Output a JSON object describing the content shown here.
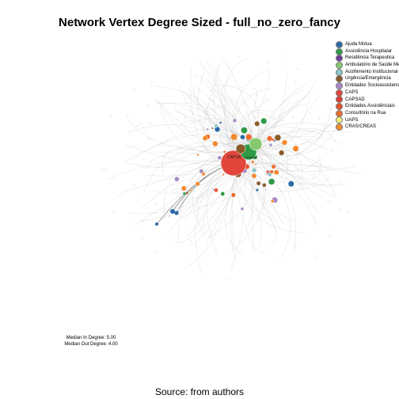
{
  "title": "Network Vertex Degree Sized - full_no_zero_fancy",
  "legend": [
    {
      "label": "Ajuda Mútua",
      "color": "#2b6aa8"
    },
    {
      "label": "Assistência Hospitalar",
      "color": "#2f9a48"
    },
    {
      "label": "Residência Terapeutica",
      "color": "#6d3f98"
    },
    {
      "label": "Ambulatório de Saúde Mental",
      "color": "#86c96e"
    },
    {
      "label": "Acolhimento Institucional",
      "color": "#8fc7c9"
    },
    {
      "label": "Urgência/Emergência",
      "color": "#8b5a2b"
    },
    {
      "label": "Entidades Socioassistenciais",
      "color": "#a888c8"
    },
    {
      "label": "CAPS",
      "color": "#e2453c"
    },
    {
      "label": "CAPSAD",
      "color": "#e03a2f"
    },
    {
      "label": "Entidades Assistênciais",
      "color": "#e8502e"
    },
    {
      "label": "Consultório na Rua",
      "color": "#ef6c2f"
    },
    {
      "label": "UAPS",
      "color": "#f0f07a"
    },
    {
      "label": "CRAS/CREAS",
      "color": "#f28a2e"
    }
  ],
  "hub_labels": {
    "caps": "CAPSIII",
    "green": "Hospital"
  },
  "stats": {
    "median_in": "Median In Degree: 5.00",
    "median_out": "Median Out Degree: 4.00"
  },
  "source": "Source: from authors"
}
